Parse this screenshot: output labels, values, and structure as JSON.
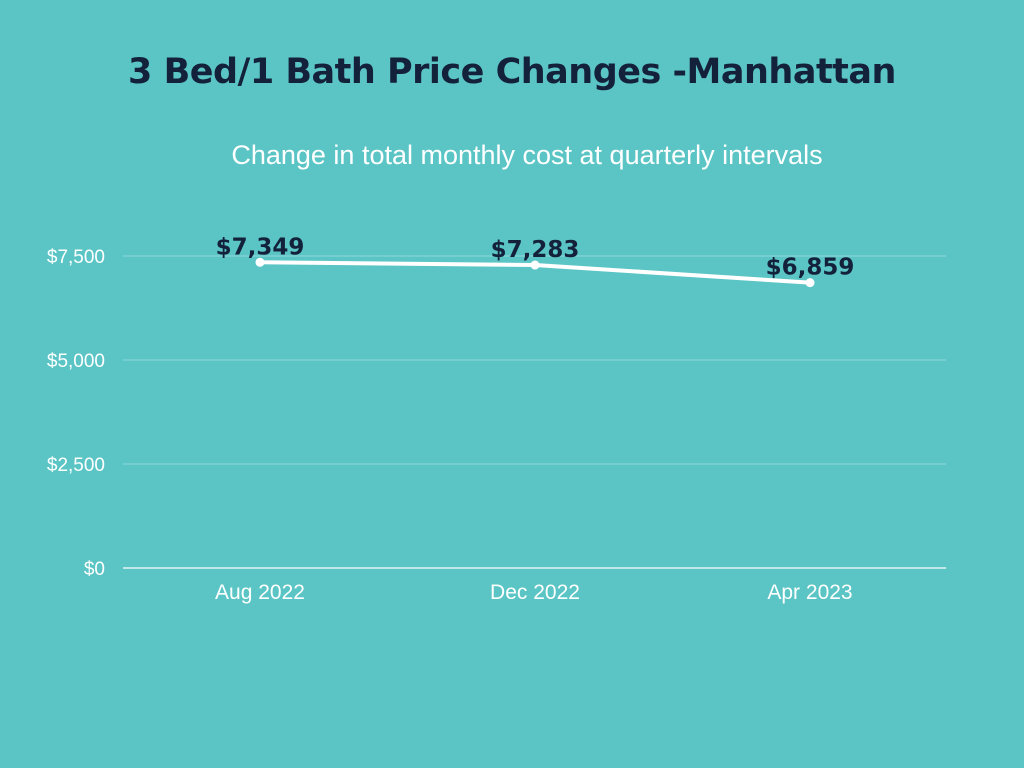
{
  "chart_data": {
    "type": "line",
    "title": "3 Bed/1 Bath Price Changes -Manhattan",
    "subtitle": "Change in total monthly cost at quarterly intervals",
    "categories": [
      "Aug 2022",
      "Dec 2022",
      "Apr 2023"
    ],
    "series": [
      {
        "name": "Total monthly cost",
        "values": [
          7349,
          7283,
          6859
        ],
        "labels": [
          "$7,349",
          "$7,283",
          "$6,859"
        ]
      }
    ],
    "yticks": [
      0,
      2500,
      5000,
      7500
    ],
    "ytick_labels": [
      "$0",
      "$2,500",
      "$5,000",
      "$7,500"
    ],
    "ylim": [
      0,
      7500
    ],
    "xlabel": "",
    "ylabel": "",
    "grid": true
  },
  "colors": {
    "background": "#5bc5c6",
    "title": "#14213a",
    "line": "#ffffff",
    "grid": "#8fd8d8",
    "axis": "#ffffff"
  }
}
